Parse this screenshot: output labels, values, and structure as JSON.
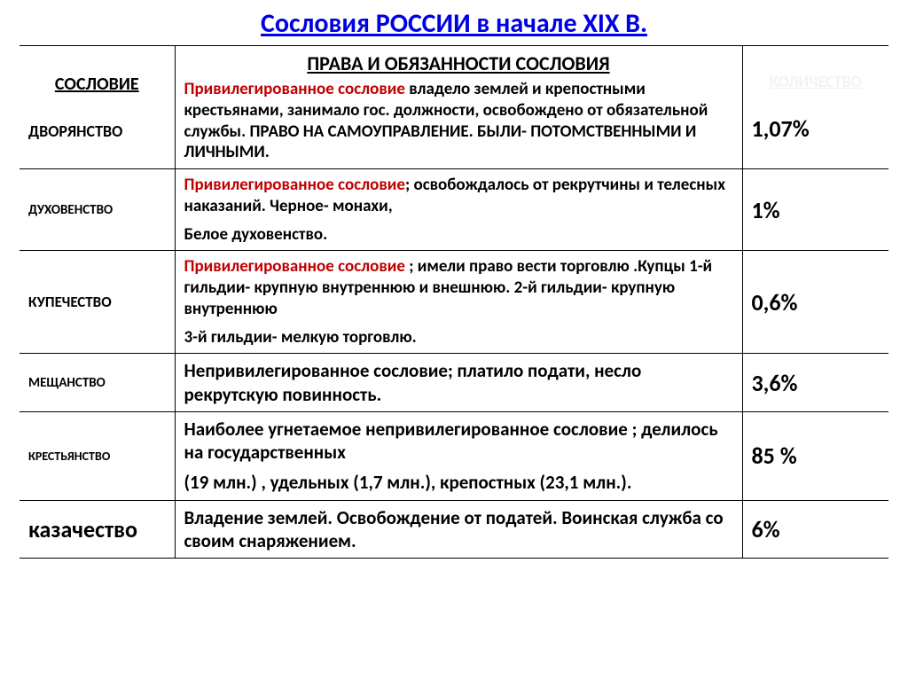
{
  "title": "Сословия РОССИИ в начале XIX В.",
  "title_color": "#0000e6",
  "headers": {
    "estate": "СОСЛОВИЕ",
    "rights": "ПРАВА И ОБЯЗАННОСТИ СОСЛОВИЯ",
    "quantity": "КОЛИЧЕСТВО",
    "quantity_color": "#f2f2f2"
  },
  "privileged_color": "#c00000",
  "rows": [
    {
      "estate": "ДВОРЯНСТВО",
      "estate_fontsize": 18,
      "privileged": "Привилегированное сословие",
      "text_rest": " владело землей и крепостными крестьянами, занимало гос. должности, освобождено от обязательной службы. ПРАВО НА САМОУПРАВЛЕНИЕ. БЫЛИ- ПОТОМСТВЕННЫМИ И ЛИЧНЫМИ.",
      "bold_tail": true,
      "value": "1,07%"
    },
    {
      "estate": "ДУХОВЕНСТВО",
      "estate_fontsize": 15,
      "privileged": "Привилегированное сословие",
      "text_rest": "; освобождалось от рекрутчины и телесных наказаний. Черное- монахи,",
      "line2": "Белое духовенство.",
      "value": "1%"
    },
    {
      "estate": "КУПЕЧЕСТВО",
      "estate_fontsize": 17,
      "privileged": "Привилегированное сословие ",
      "text_rest": "; имели право вести торговлю .Купцы 1-й гильдии- крупную внутреннюю и внешнюю. 2-й гильдии- крупную внутреннюю",
      "line2": "3-й гильдии- мелкую торговлю.",
      "value": "0,6%"
    },
    {
      "estate": "МЕЩАНСТВО",
      "estate_fontsize": 15,
      "desc_bold": "Непривилегированное сословие; платило подати, несло рекрутскую повинность.",
      "value": "3,6%",
      "value_prefix": " "
    },
    {
      "estate": "КРЕСТЬЯНСТВО",
      "estate_fontsize": 14,
      "desc_bold": "Наиболее угнетаемое непривилегированное сословие ; делилось на государственных",
      "line2_bold": "(19 млн.) , удельных (1,7 млн.), крепостных (23,1 млн.).",
      "value": "85 %"
    },
    {
      "estate": "казачество",
      "estate_fontsize": 26,
      "desc_bold": "Владение землей. Освобождение от податей. Воинская служба со своим снаряжением.",
      "value": "6%"
    }
  ]
}
